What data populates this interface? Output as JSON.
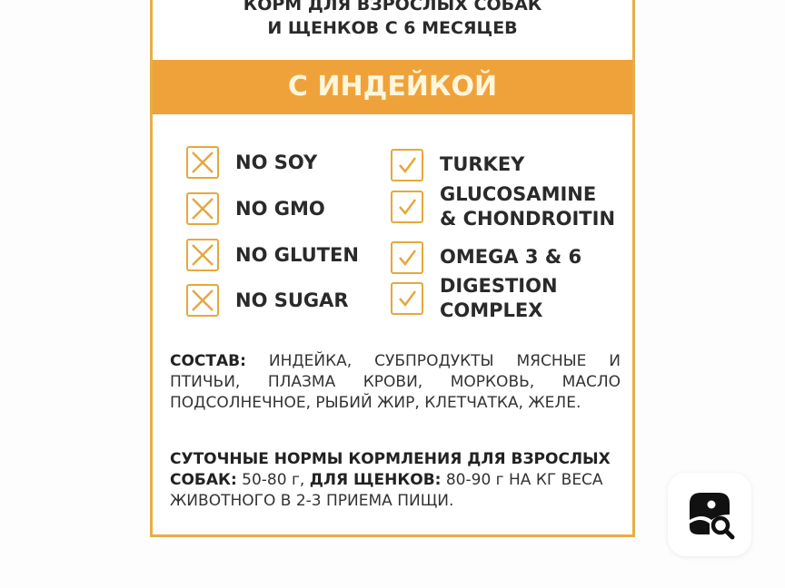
{
  "label": {
    "subtitle_lines": [
      "КОРМ ДЛЯ ВЗРОСЛЫХ СОБАК",
      "И ЩЕНКОВ С 6 МЕСЯЦЕВ"
    ],
    "banner": "С ИНДЕЙКОЙ",
    "excludes": [
      "NO SOY",
      "NO GMO",
      "NO GLUTEN",
      "NO SUGAR"
    ],
    "includes": [
      [
        "TURKEY"
      ],
      [
        "GLUCOSAMINE",
        "& CHONDROITIN"
      ],
      [
        "OMEGA 3 & 6"
      ],
      [
        "DIGESTION",
        "COMPLEX"
      ]
    ],
    "composition_label": "СОСТАВ:",
    "composition": "ИНДЕЙКА, СУБПРОДУКТЫ МЯСНЫЕ И ПТИЧЬИ, ПЛАЗМА КРОВИ, МОРКОВЬ, МАСЛО ПОДСОЛНЕЧНОЕ, РЫБИЙ ЖИР, КЛЕТЧАТКА, ЖЕЛЕ.",
    "feeding_label": "СУТОЧНЫЕ НОРМЫ КОРМЛЕНИЯ ДЛЯ ВЗРОСЛЫХ СОБАК:",
    "feeding_adult": "50-80 г,",
    "feeding_puppy_label": "ДЛЯ ЩЕНКОВ:",
    "feeding_puppy": "80-90 г НА КГ ВЕСА ЖИВОТНОГО В 2-3 ПРИЕМА ПИЩИ."
  },
  "colors": {
    "accent": "#f0a23a",
    "border": "#e9ad45"
  },
  "fab": {
    "icon": "image-search-icon"
  }
}
